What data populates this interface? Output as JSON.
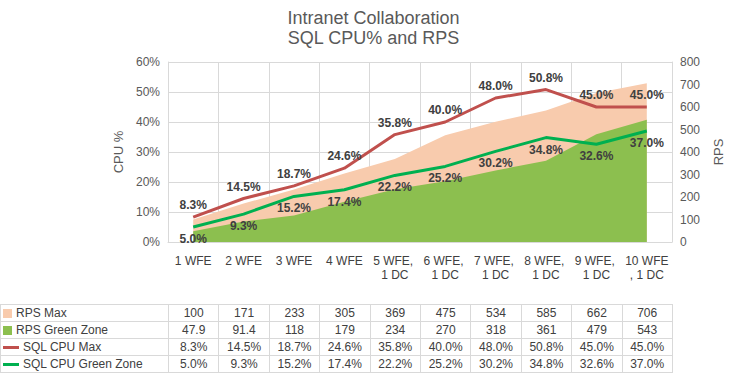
{
  "chart_data": {
    "type": "line",
    "title": "Intranet Collaboration",
    "subtitle": "SQL CPU% and RPS",
    "y_label": "CPU %",
    "y2_label": "RPS",
    "categories": [
      "1 WFE",
      "2 WFE",
      "3 WFE",
      "4 WFE",
      "5 WFE, 1 DC",
      "6 WFE, 1 DC",
      "7 WFE, 1 DC",
      "8 WFE, 1 DC",
      "9 WFE, 1 DC",
      "10 WFE, 1 DC"
    ],
    "ylim": [
      0,
      60
    ],
    "yticks": [
      {
        "value": 0,
        "label": "0%"
      },
      {
        "value": 10,
        "label": "10%"
      },
      {
        "value": 20,
        "label": "20%"
      },
      {
        "value": 30,
        "label": "30%"
      },
      {
        "value": 40,
        "label": "40%"
      },
      {
        "value": 50,
        "label": "50%"
      },
      {
        "value": 60,
        "label": "60%"
      }
    ],
    "y2lim": [
      0,
      800
    ],
    "y2ticks": [
      0,
      100,
      200,
      300,
      400,
      500,
      600,
      700,
      800
    ],
    "grid": true,
    "series": [
      {
        "name": "RPS Max",
        "type": "area",
        "axis": "y2",
        "color": "#f8cbad",
        "values": [
          100,
          171,
          233,
          305,
          369,
          475,
          534,
          585,
          662,
          706
        ]
      },
      {
        "name": "RPS Green Zone",
        "type": "area",
        "axis": "y2",
        "color": "#8cbf4f",
        "values": [
          47.9,
          91.4,
          118,
          179,
          234,
          270,
          318,
          361,
          479,
          543
        ]
      },
      {
        "name": "SQL CPU Max",
        "type": "line",
        "color": "#c0504d",
        "data_labels": true,
        "values": [
          8.3,
          14.5,
          18.7,
          24.6,
          35.8,
          40.0,
          48.0,
          50.8,
          45.0,
          45.0
        ],
        "value_labels": [
          "8.3%",
          "14.5%",
          "18.7%",
          "24.6%",
          "35.8%",
          "40.0%",
          "48.0%",
          "50.8%",
          "45.0%",
          "45.0%"
        ]
      },
      {
        "name": "SQL CPU Green Zone",
        "type": "line",
        "color": "#00b050",
        "data_labels": true,
        "values": [
          5.0,
          9.3,
          15.2,
          17.4,
          22.2,
          25.2,
          30.2,
          34.8,
          32.6,
          37.0
        ],
        "value_labels": [
          "5.0%",
          "9.3%",
          "15.2%",
          "17.4%",
          "22.2%",
          "25.2%",
          "30.2%",
          "34.8%",
          "32.6%",
          "37.0%"
        ]
      }
    ]
  }
}
